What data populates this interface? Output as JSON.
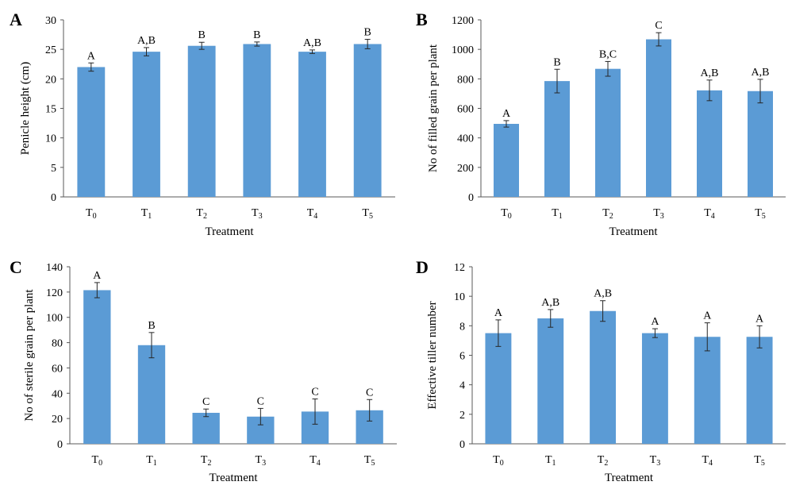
{
  "chart_data": [
    {
      "panel": "A",
      "type": "bar",
      "categories": [
        "T0",
        "T1",
        "T2",
        "T3",
        "T4",
        "T5"
      ],
      "category_labels": [
        {
          "base": "T",
          "sub": "0"
        },
        {
          "base": "T",
          "sub": "1"
        },
        {
          "base": "T",
          "sub": "2"
        },
        {
          "base": "T",
          "sub": "3"
        },
        {
          "base": "T",
          "sub": "4"
        },
        {
          "base": "T",
          "sub": "5"
        }
      ],
      "values": [
        22.0,
        24.6,
        25.6,
        25.9,
        24.6,
        25.9
      ],
      "errors": [
        0.7,
        0.7,
        0.6,
        0.35,
        0.3,
        0.8
      ],
      "significance": [
        "A",
        "A,B",
        "B",
        "B",
        "A,B",
        "B"
      ],
      "xlabel": "Treatment",
      "ylabel": "Penicle height (cm)",
      "ylim": [
        0,
        30
      ],
      "yticks": [
        0,
        5,
        10,
        15,
        20,
        25,
        30
      ],
      "bar_color": "#5b9bd5",
      "grid": false,
      "legend": "none"
    },
    {
      "panel": "B",
      "type": "bar",
      "categories": [
        "T0",
        "T1",
        "T2",
        "T3",
        "T4",
        "T5"
      ],
      "category_labels": [
        {
          "base": "T",
          "sub": "0"
        },
        {
          "base": "T",
          "sub": "1"
        },
        {
          "base": "T",
          "sub": "2"
        },
        {
          "base": "T",
          "sub": "3"
        },
        {
          "base": "T",
          "sub": "4"
        },
        {
          "base": "T",
          "sub": "5"
        }
      ],
      "values": [
        495,
        785,
        868,
        1068,
        722,
        717
      ],
      "errors": [
        22,
        80,
        50,
        45,
        70,
        80
      ],
      "significance": [
        "A",
        "B",
        "B,C",
        "C",
        "A,B",
        "A,B"
      ],
      "xlabel": "Treatment",
      "ylabel": "No of filled grain per plant",
      "ylim": [
        0,
        1200
      ],
      "yticks": [
        0,
        200,
        400,
        600,
        800,
        1000,
        1200
      ],
      "bar_color": "#5b9bd5",
      "grid": false,
      "legend": "none"
    },
    {
      "panel": "C",
      "type": "bar",
      "categories": [
        "T0",
        "T1",
        "T2",
        "T3",
        "T4",
        "T5"
      ],
      "category_labels": [
        {
          "base": "T",
          "sub": "0"
        },
        {
          "base": "T",
          "sub": "1"
        },
        {
          "base": "T",
          "sub": "2"
        },
        {
          "base": "T",
          "sub": "3"
        },
        {
          "base": "T",
          "sub": "4"
        },
        {
          "base": "T",
          "sub": "5"
        }
      ],
      "values": [
        121.5,
        78,
        24.5,
        21.5,
        25.5,
        26.5
      ],
      "errors": [
        6,
        10,
        3,
        6.5,
        10,
        8.5
      ],
      "significance": [
        "A",
        "B",
        "C",
        "C",
        "C",
        "C"
      ],
      "xlabel": "Treatment",
      "ylabel": "No of sterile grain per plant",
      "ylim": [
        0,
        140
      ],
      "yticks": [
        0,
        20,
        40,
        60,
        80,
        100,
        120,
        140
      ],
      "bar_color": "#5b9bd5",
      "grid": false,
      "legend": "none"
    },
    {
      "panel": "D",
      "type": "bar",
      "categories": [
        "T0",
        "T1",
        "T2",
        "T3",
        "T4",
        "T5"
      ],
      "category_labels": [
        {
          "base": "T",
          "sub": "0"
        },
        {
          "base": "T",
          "sub": "1"
        },
        {
          "base": "T",
          "sub": "2"
        },
        {
          "base": "T",
          "sub": "3"
        },
        {
          "base": "T",
          "sub": "4"
        },
        {
          "base": "T",
          "sub": "5"
        }
      ],
      "values": [
        7.5,
        8.5,
        9.0,
        7.5,
        7.25,
        7.25
      ],
      "errors": [
        0.9,
        0.6,
        0.7,
        0.3,
        0.95,
        0.75
      ],
      "significance": [
        "A",
        "A,B",
        "A,B",
        "A",
        "A",
        "A"
      ],
      "xlabel": "Treatment",
      "ylabel": "Effective tiller number",
      "ylim": [
        0,
        12
      ],
      "yticks": [
        0,
        2,
        4,
        6,
        8,
        10,
        12
      ],
      "bar_color": "#5b9bd5",
      "grid": false,
      "legend": "none"
    }
  ]
}
